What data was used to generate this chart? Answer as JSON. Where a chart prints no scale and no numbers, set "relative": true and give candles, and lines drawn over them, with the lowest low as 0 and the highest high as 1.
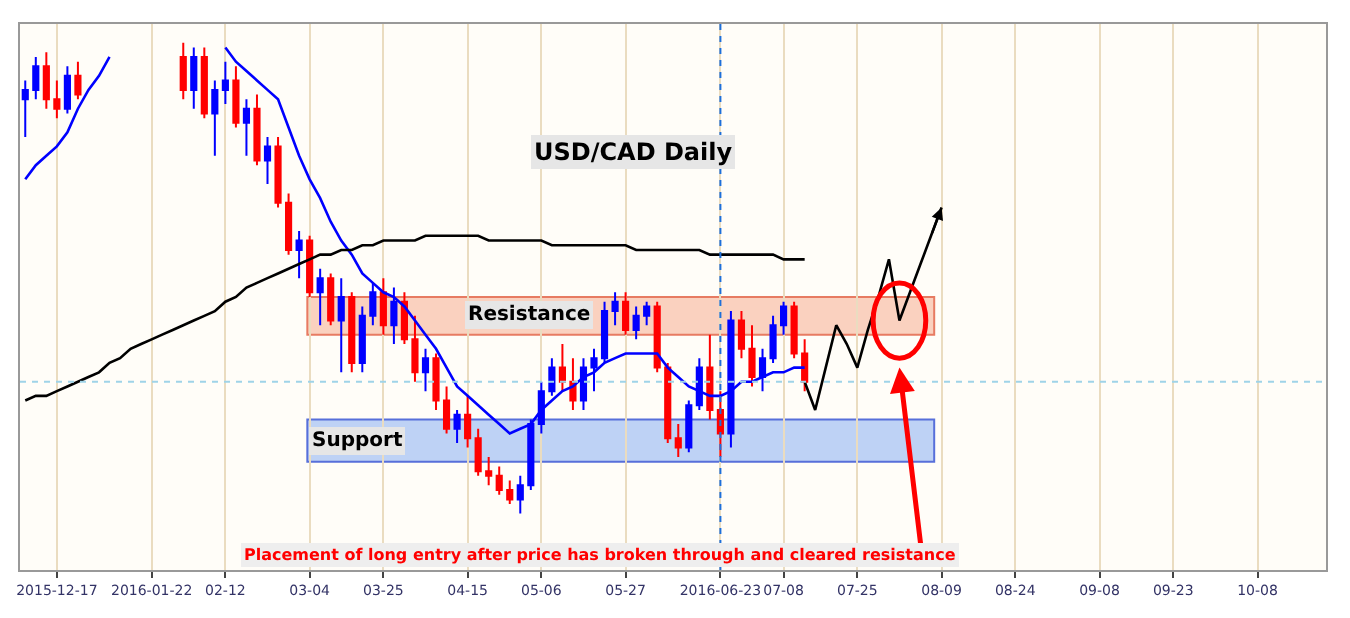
{
  "chart_data": {
    "type": "candlestick",
    "title": "USD/CAD Daily",
    "relative": true,
    "categories": [
      null,
      null,
      null,
      "2015-12-17",
      null,
      null,
      null,
      null,
      null,
      null,
      null,
      null,
      "2016-01-22",
      null,
      null,
      null,
      null,
      null,
      null,
      "02-12",
      null,
      null,
      null,
      null,
      null,
      null,
      null,
      "03-04",
      null,
      null,
      null,
      null,
      null,
      null,
      "03-25",
      null,
      null,
      null,
      null,
      null,
      null,
      null,
      "04-15",
      null,
      null,
      null,
      null,
      null,
      null,
      "05-06",
      null,
      null,
      null,
      null,
      null,
      null,
      null,
      "05-27",
      null,
      null,
      null,
      null,
      null,
      null,
      null,
      null,
      "2016-06-23",
      null,
      null,
      null,
      null,
      null,
      "07-08",
      null,
      null,
      null,
      null,
      null,
      null,
      "07-25",
      null,
      null,
      null,
      null,
      null,
      null,
      null,
      "08-09",
      null,
      null,
      null,
      null,
      null,
      null,
      "08-24",
      null,
      null,
      null,
      null,
      null,
      null,
      null,
      "09-08",
      null,
      null,
      null,
      null,
      null,
      null,
      "09-23",
      null,
      null,
      null,
      null,
      null,
      null,
      null,
      "10-08",
      null,
      null,
      null,
      null,
      null,
      null
    ],
    "ohlc": [
      [
        0.88,
        0.92,
        0.8,
        0.9
      ],
      [
        0.9,
        0.97,
        0.88,
        0.95
      ],
      [
        0.95,
        0.98,
        0.86,
        0.88
      ],
      [
        0.88,
        0.92,
        0.84,
        0.86
      ],
      [
        0.86,
        0.95,
        0.85,
        0.93
      ],
      [
        0.93,
        0.96,
        0.88,
        0.89
      ],
      null,
      null,
      null,
      null,
      null,
      null,
      null,
      null,
      null,
      [
        0.97,
        1.0,
        0.88,
        0.9
      ],
      [
        0.9,
        0.99,
        0.86,
        0.97
      ],
      [
        0.97,
        0.99,
        0.84,
        0.85
      ],
      [
        0.85,
        0.92,
        0.76,
        0.9
      ],
      [
        0.9,
        0.96,
        0.87,
        0.92
      ],
      [
        0.92,
        0.95,
        0.82,
        0.83
      ],
      [
        0.83,
        0.88,
        0.76,
        0.86
      ],
      [
        0.86,
        0.89,
        0.74,
        0.75
      ],
      [
        0.75,
        0.8,
        0.7,
        0.78
      ],
      [
        0.78,
        0.8,
        0.65,
        0.66
      ],
      [
        0.66,
        0.68,
        0.55,
        0.56
      ],
      [
        0.56,
        0.6,
        0.5,
        0.58
      ],
      [
        0.58,
        0.59,
        0.46,
        0.47
      ],
      [
        0.47,
        0.52,
        0.4,
        0.5
      ],
      [
        0.5,
        0.51,
        0.4,
        0.41
      ],
      [
        0.41,
        0.5,
        0.3,
        0.46
      ],
      [
        0.46,
        0.47,
        0.3,
        0.32
      ],
      [
        0.32,
        0.44,
        0.3,
        0.42
      ],
      [
        0.42,
        0.49,
        0.4,
        0.47
      ],
      [
        0.47,
        0.5,
        0.38,
        0.4
      ],
      [
        0.4,
        0.48,
        0.36,
        0.45
      ],
      [
        0.45,
        0.47,
        0.36,
        0.37
      ],
      [
        0.37,
        0.42,
        0.28,
        0.3
      ],
      [
        0.3,
        0.35,
        0.26,
        0.33
      ],
      [
        0.33,
        0.34,
        0.22,
        0.24
      ],
      [
        0.24,
        0.27,
        0.17,
        0.18
      ],
      [
        0.18,
        0.22,
        0.15,
        0.21
      ],
      [
        0.21,
        0.25,
        0.14,
        0.16
      ],
      [
        0.16,
        0.18,
        0.08,
        0.09
      ],
      [
        0.09,
        0.12,
        0.06,
        0.08
      ],
      [
        0.08,
        0.1,
        0.04,
        0.05
      ],
      [
        0.05,
        0.07,
        0.02,
        0.03
      ],
      [
        0.03,
        0.08,
        0.0,
        0.06
      ],
      [
        0.06,
        0.2,
        0.05,
        0.19
      ],
      [
        0.19,
        0.28,
        0.17,
        0.26
      ],
      [
        0.26,
        0.33,
        0.25,
        0.31
      ],
      [
        0.31,
        0.36,
        0.26,
        0.28
      ],
      [
        0.28,
        0.33,
        0.22,
        0.24
      ],
      [
        0.24,
        0.33,
        0.22,
        0.31
      ],
      [
        0.31,
        0.35,
        0.26,
        0.33
      ],
      [
        0.33,
        0.45,
        0.32,
        0.43
      ],
      [
        0.43,
        0.47,
        0.4,
        0.45
      ],
      [
        0.45,
        0.47,
        0.38,
        0.39
      ],
      [
        0.39,
        0.44,
        0.37,
        0.42
      ],
      [
        0.42,
        0.45,
        0.4,
        0.44
      ],
      [
        0.44,
        0.45,
        0.3,
        0.31
      ],
      [
        0.31,
        0.32,
        0.15,
        0.16
      ],
      [
        0.16,
        0.19,
        0.12,
        0.14
      ],
      [
        0.14,
        0.24,
        0.13,
        0.23
      ],
      [
        0.23,
        0.33,
        0.22,
        0.31
      ],
      [
        0.31,
        0.38,
        0.2,
        0.22
      ],
      [
        0.22,
        0.26,
        0.12,
        0.17
      ],
      [
        0.17,
        0.43,
        0.14,
        0.41
      ],
      [
        0.41,
        0.43,
        0.33,
        0.35
      ],
      [
        0.35,
        0.4,
        0.27,
        0.29
      ],
      [
        0.29,
        0.35,
        0.26,
        0.33
      ],
      [
        0.33,
        0.42,
        0.32,
        0.4
      ],
      [
        0.4,
        0.45,
        0.38,
        0.44
      ],
      [
        0.44,
        0.45,
        0.33,
        0.34
      ],
      [
        0.34,
        0.37,
        0.26,
        0.28
      ],
      null,
      null,
      null,
      null,
      null,
      null,
      null,
      null,
      null,
      null,
      null,
      null,
      null,
      null,
      null,
      null,
      null,
      null,
      null,
      null,
      null,
      null,
      null,
      null,
      null,
      null,
      null,
      null,
      null,
      null,
      null,
      null,
      null,
      null,
      null,
      null,
      null,
      null,
      null,
      null,
      null,
      null,
      null,
      null,
      null,
      null,
      null,
      null,
      null
    ],
    "series": [
      {
        "type": "line",
        "color": "#0000ff",
        "values": [
          0.71,
          0.74,
          0.76,
          0.78,
          0.81,
          0.86,
          0.9,
          0.93,
          0.97,
          null,
          null,
          null,
          null,
          null,
          null,
          null,
          null,
          null,
          null,
          0.99,
          0.96,
          0.94,
          0.92,
          0.9,
          0.88,
          0.82,
          0.76,
          0.71,
          0.67,
          0.62,
          0.58,
          0.55,
          0.51,
          0.49,
          0.47,
          0.46,
          0.44,
          0.41,
          0.38,
          0.35,
          0.31,
          0.27,
          0.25,
          0.23,
          0.21,
          0.19,
          0.17,
          0.18,
          0.19,
          0.22,
          0.24,
          0.26,
          0.27,
          0.29,
          0.3,
          0.32,
          0.33,
          0.34,
          0.34,
          0.34,
          0.34,
          0.31,
          0.29,
          0.27,
          0.26,
          0.25,
          0.25,
          0.26,
          0.28,
          0.28,
          0.29,
          0.3,
          0.3,
          0.31,
          0.31,
          null,
          null,
          null,
          null,
          null,
          null,
          null,
          null,
          null,
          null,
          null,
          null,
          null,
          null,
          null,
          null,
          null,
          null,
          null,
          null,
          null,
          null,
          null,
          null,
          null,
          null,
          null,
          null,
          null,
          null,
          null,
          null,
          null,
          null,
          null,
          null,
          null,
          null,
          null,
          null,
          null,
          null,
          null,
          null,
          null,
          null,
          null,
          null,
          null
        ]
      },
      {
        "type": "line",
        "color": "#000000",
        "values": [
          0.24,
          0.25,
          0.25,
          0.26,
          0.27,
          0.28,
          0.29,
          0.3,
          0.32,
          0.33,
          0.35,
          0.36,
          0.37,
          0.38,
          0.39,
          0.4,
          0.41,
          0.42,
          0.43,
          0.45,
          0.46,
          0.48,
          0.49,
          0.5,
          0.51,
          0.52,
          0.53,
          0.54,
          0.55,
          0.55,
          0.56,
          0.56,
          0.57,
          0.57,
          0.58,
          0.58,
          0.58,
          0.58,
          0.59,
          0.59,
          0.59,
          0.59,
          0.59,
          0.59,
          0.58,
          0.58,
          0.58,
          0.58,
          0.58,
          0.58,
          0.57,
          0.57,
          0.57,
          0.57,
          0.57,
          0.57,
          0.57,
          0.57,
          0.56,
          0.56,
          0.56,
          0.56,
          0.56,
          0.56,
          0.56,
          0.55,
          0.55,
          0.55,
          0.55,
          0.55,
          0.55,
          0.55,
          0.54,
          0.54,
          0.54,
          null,
          null,
          null,
          null,
          null,
          null,
          null,
          null,
          null,
          null,
          null,
          null,
          null,
          null,
          null,
          null,
          null,
          null,
          null,
          null,
          null,
          null,
          null,
          null,
          null,
          null,
          null,
          null,
          null,
          null,
          null,
          null,
          null,
          null,
          null,
          null,
          null,
          null,
          null,
          null,
          null,
          null,
          null,
          null,
          null,
          null,
          null,
          null,
          null
        ]
      },
      {
        "type": "line",
        "color": "#000000",
        "values": [
          null,
          null,
          null,
          null,
          null,
          null,
          null,
          null,
          null,
          null,
          null,
          null,
          null,
          null,
          null,
          null,
          null,
          null,
          null,
          null,
          null,
          null,
          null,
          null,
          null,
          null,
          null,
          null,
          null,
          null,
          null,
          null,
          null,
          null,
          null,
          null,
          null,
          null,
          null,
          null,
          null,
          null,
          null,
          null,
          null,
          null,
          null,
          null,
          null,
          null,
          null,
          null,
          null,
          null,
          null,
          null,
          null,
          null,
          null,
          null,
          null,
          null,
          null,
          null,
          null,
          null,
          null,
          null,
          null,
          null,
          null,
          null,
          null,
          null,
          0.28,
          0.22,
          0.31,
          0.4,
          0.36,
          0.31,
          0.39,
          0.46,
          0.54,
          0.41,
          0.47,
          0.53,
          0.59,
          0.65,
          null,
          null,
          null,
          null,
          null,
          null,
          null,
          null,
          null,
          null,
          null,
          null,
          null,
          null,
          null,
          null,
          null,
          null,
          null,
          null,
          null,
          null,
          null,
          null,
          null,
          null,
          null,
          null,
          null,
          null,
          null,
          null,
          null,
          null,
          null,
          null
        ]
      }
    ],
    "grid": true,
    "tick_labels": "x",
    "bands": [
      {
        "axis": "y",
        "from": 0.38,
        "to": 0.46,
        "label": "Resistance",
        "color": "#f9c3ad"
      },
      {
        "axis": "y",
        "from": 0.11,
        "to": 0.2,
        "label": "Support",
        "color": "#a9c4f5"
      }
    ],
    "ref_lines": [
      {
        "axis": "x",
        "value": "2016-06-23",
        "color": "#1e6fd9",
        "line_style": "dotted"
      },
      {
        "axis": "y",
        "value": 0.28,
        "color": "#9fd3e8",
        "line_style": "dotted"
      }
    ],
    "annotations": [
      "Placement of long entry after price has broken through and cleared resistance"
    ]
  }
}
